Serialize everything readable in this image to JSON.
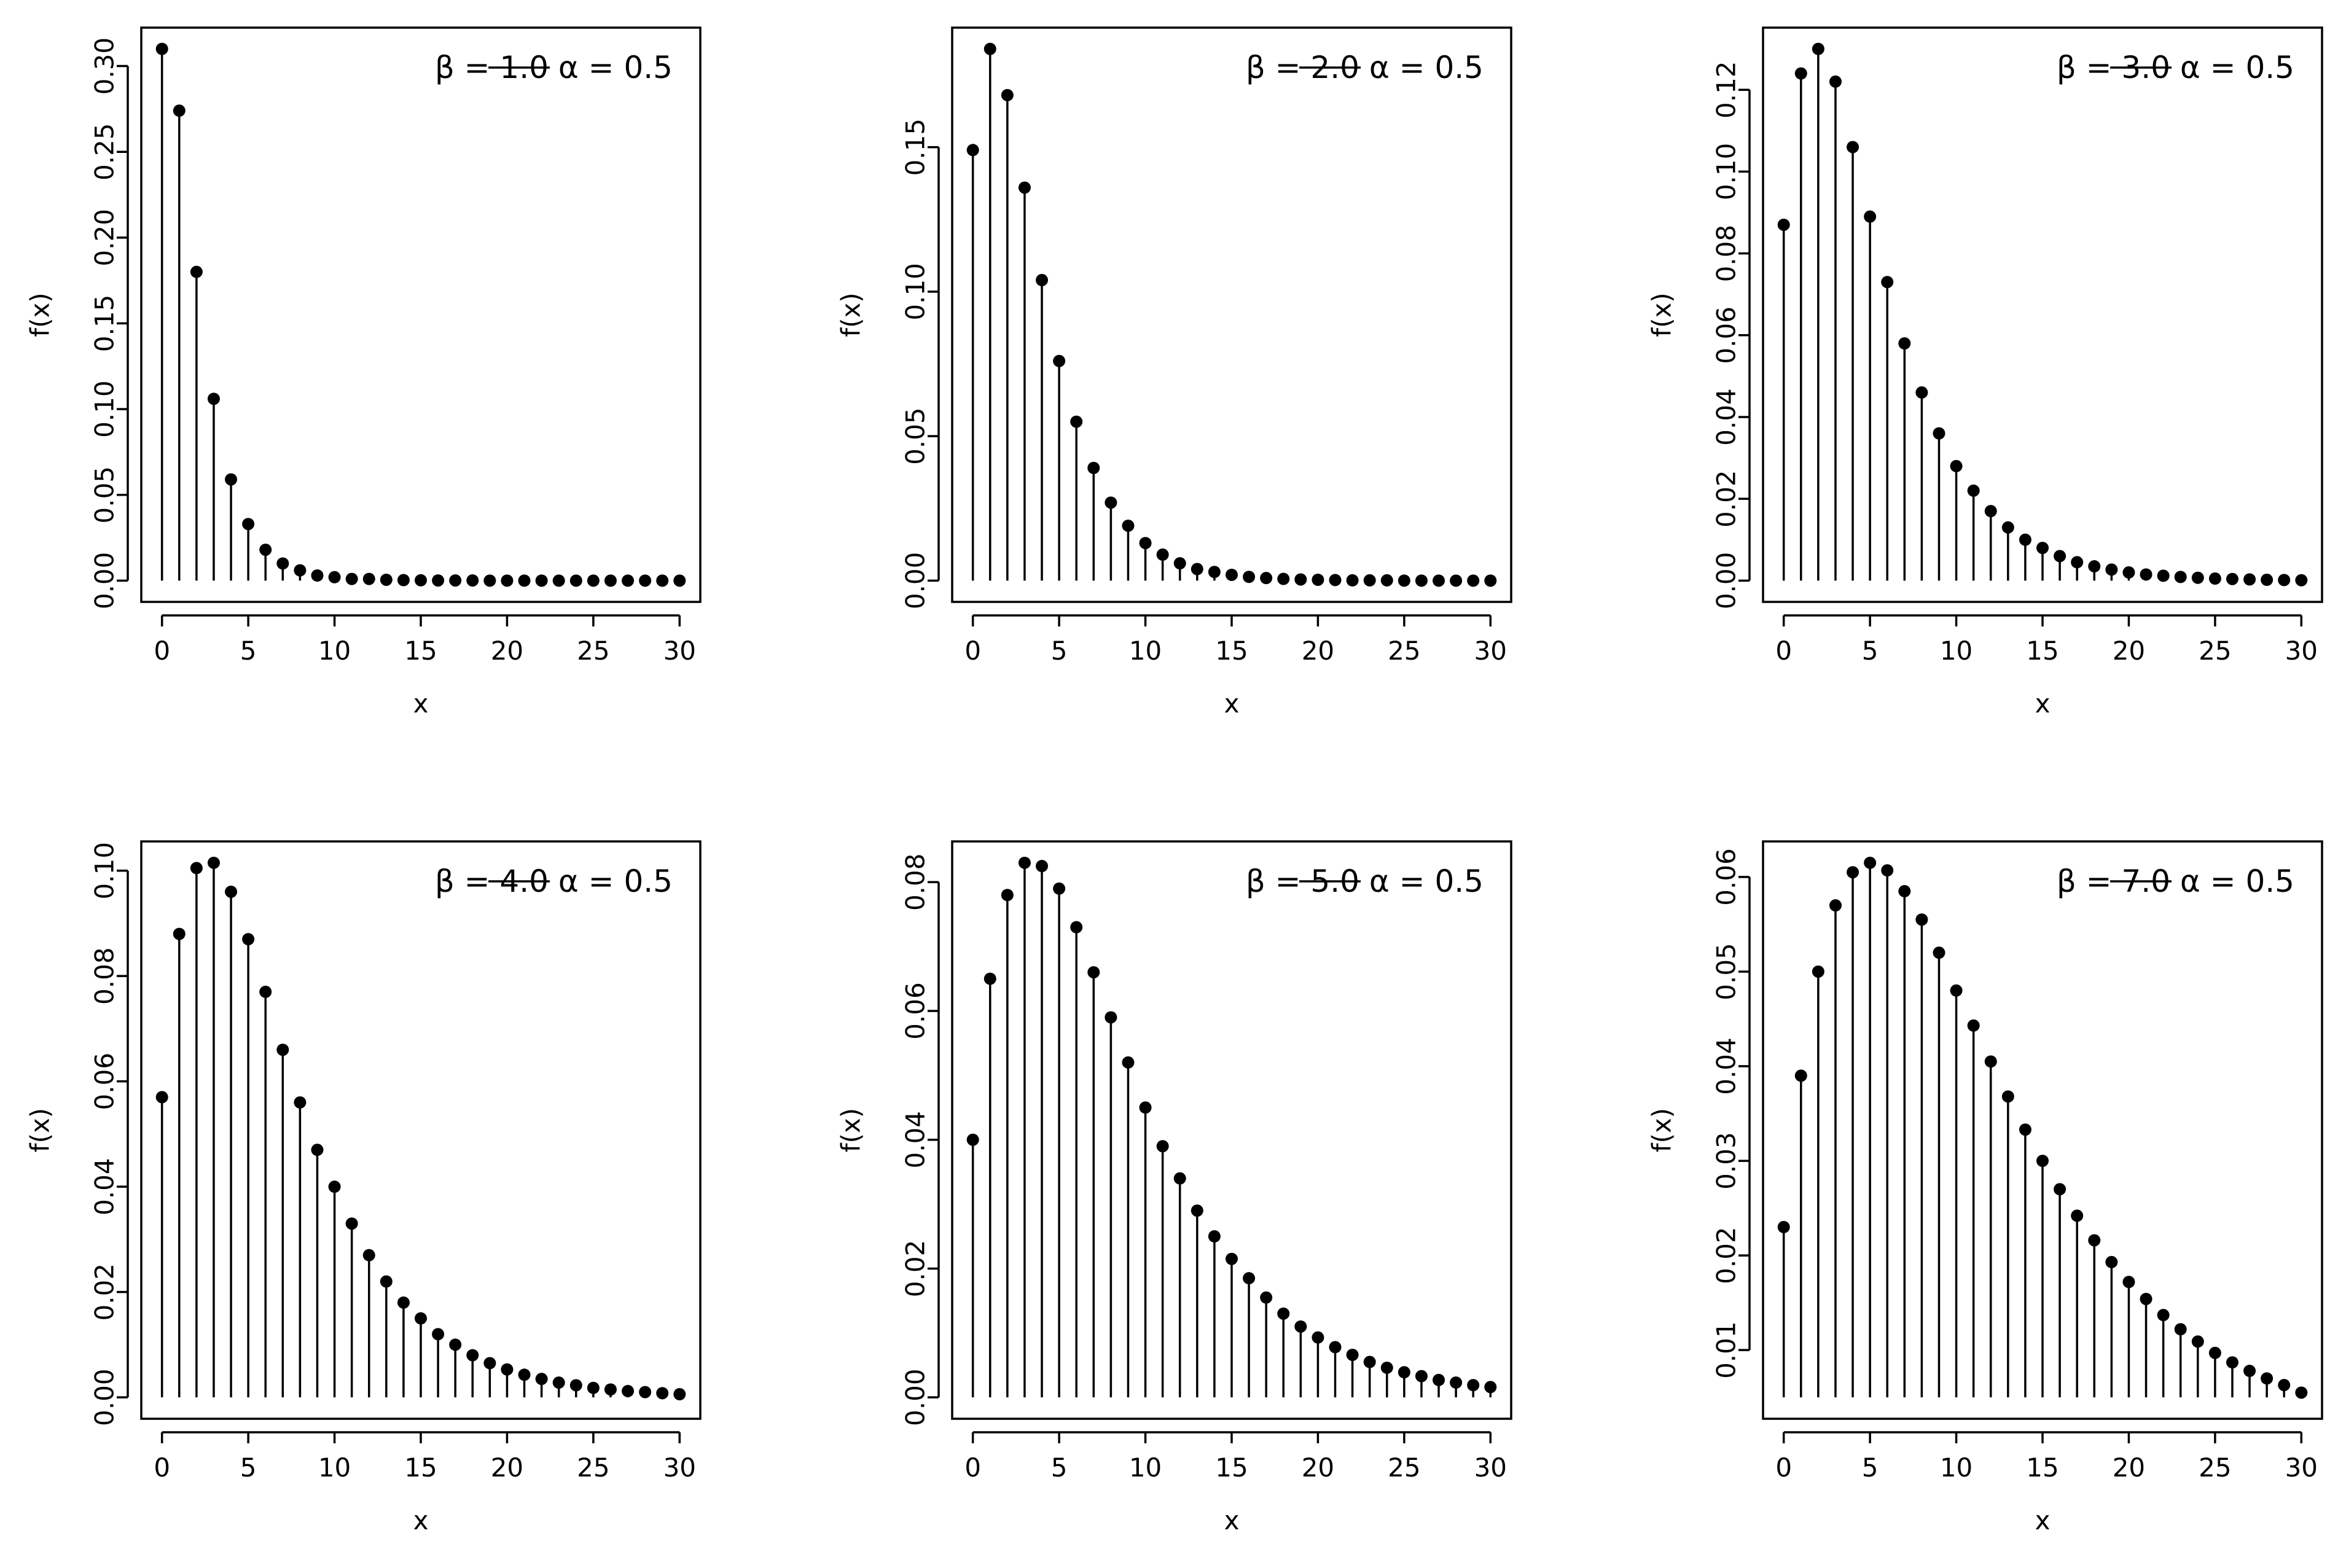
{
  "chart_data": [
    {
      "type": "lollipop",
      "xlabel": "x",
      "ylabel": "f(x)",
      "xlim": [
        0,
        30
      ],
      "ylim": [
        0,
        0.31
      ],
      "xticks": [
        0,
        5,
        10,
        15,
        20,
        25,
        30
      ],
      "xtick_labels": [
        "0",
        "5",
        "10",
        "15",
        "20",
        "25",
        "30"
      ],
      "yticks": [
        0.0,
        0.05,
        0.1,
        0.15,
        0.2,
        0.25,
        0.3
      ],
      "ytick_labels": [
        "0.00",
        "0.05",
        "0.10",
        "0.15",
        "0.20",
        "0.25",
        "0.30"
      ],
      "legend": {
        "label": "β = 1.0 α = 0.5",
        "position": "top-right"
      },
      "x": [
        0,
        1,
        2,
        3,
        4,
        5,
        6,
        7,
        8,
        9,
        10,
        11,
        12,
        13,
        14,
        15,
        16,
        17,
        18,
        19,
        20,
        21,
        22,
        23,
        24,
        25,
        26,
        27,
        28,
        29,
        30
      ],
      "values": [
        0.31,
        0.274,
        0.18,
        0.106,
        0.059,
        0.033,
        0.018,
        0.01,
        0.006,
        0.003,
        0.002,
        0.001,
        0.001,
        0.0005,
        0.0003,
        0.0002,
        0.0001,
        0.0001,
        0.0001,
        0,
        0,
        0,
        0,
        0,
        0,
        0,
        0,
        0,
        0,
        0,
        0
      ]
    },
    {
      "type": "lollipop",
      "xlabel": "x",
      "ylabel": "f(x)",
      "xlim": [
        0,
        30
      ],
      "ylim": [
        0,
        0.184
      ],
      "xticks": [
        0,
        5,
        10,
        15,
        20,
        25,
        30
      ],
      "xtick_labels": [
        "0",
        "5",
        "10",
        "15",
        "20",
        "25",
        "30"
      ],
      "yticks": [
        0.0,
        0.05,
        0.1,
        0.15
      ],
      "ytick_labels": [
        "0.00",
        "0.05",
        "0.10",
        "0.15"
      ],
      "legend": {
        "label": "β = 2.0 α = 0.5",
        "position": "top-right"
      },
      "x": [
        0,
        1,
        2,
        3,
        4,
        5,
        6,
        7,
        8,
        9,
        10,
        11,
        12,
        13,
        14,
        15,
        16,
        17,
        18,
        19,
        20,
        21,
        22,
        23,
        24,
        25,
        26,
        27,
        28,
        29,
        30
      ],
      "values": [
        0.149,
        0.184,
        0.168,
        0.136,
        0.104,
        0.076,
        0.055,
        0.039,
        0.027,
        0.019,
        0.013,
        0.009,
        0.006,
        0.004,
        0.003,
        0.002,
        0.0013,
        0.0009,
        0.0006,
        0.0004,
        0.0003,
        0.0002,
        0.0001,
        0.0001,
        0.0001,
        0,
        0,
        0,
        0,
        0,
        0
      ]
    },
    {
      "type": "lollipop",
      "xlabel": "x",
      "ylabel": "f(x)",
      "xlim": [
        0,
        30
      ],
      "ylim": [
        0,
        0.13
      ],
      "xticks": [
        0,
        5,
        10,
        15,
        20,
        25,
        30
      ],
      "xtick_labels": [
        "0",
        "5",
        "10",
        "15",
        "20",
        "25",
        "30"
      ],
      "yticks": [
        0.0,
        0.02,
        0.04,
        0.06,
        0.08,
        0.1,
        0.12
      ],
      "ytick_labels": [
        "0.00",
        "0.02",
        "0.04",
        "0.06",
        "0.08",
        "0.10",
        "0.12"
      ],
      "legend": {
        "label": "β = 3.0 α = 0.5",
        "position": "top-right"
      },
      "x": [
        0,
        1,
        2,
        3,
        4,
        5,
        6,
        7,
        8,
        9,
        10,
        11,
        12,
        13,
        14,
        15,
        16,
        17,
        18,
        19,
        20,
        21,
        22,
        23,
        24,
        25,
        26,
        27,
        28,
        29,
        30
      ],
      "values": [
        0.087,
        0.124,
        0.13,
        0.122,
        0.106,
        0.089,
        0.073,
        0.058,
        0.046,
        0.036,
        0.028,
        0.022,
        0.017,
        0.013,
        0.01,
        0.008,
        0.006,
        0.0045,
        0.0035,
        0.0027,
        0.002,
        0.0015,
        0.0012,
        0.0009,
        0.0007,
        0.0005,
        0.0004,
        0.0003,
        0.0002,
        0.00015,
        0.0001
      ]
    },
    {
      "type": "lollipop",
      "xlabel": "x",
      "ylabel": "f(x)",
      "xlim": [
        0,
        30
      ],
      "ylim": [
        0,
        0.1015
      ],
      "xticks": [
        0,
        5,
        10,
        15,
        20,
        25,
        30
      ],
      "xtick_labels": [
        "0",
        "5",
        "10",
        "15",
        "20",
        "25",
        "30"
      ],
      "yticks": [
        0.0,
        0.02,
        0.04,
        0.06,
        0.08,
        0.1
      ],
      "ytick_labels": [
        "0.00",
        "0.02",
        "0.04",
        "0.06",
        "0.08",
        "0.10"
      ],
      "legend": {
        "label": "β = 4.0 α = 0.5",
        "position": "top-right"
      },
      "x": [
        0,
        1,
        2,
        3,
        4,
        5,
        6,
        7,
        8,
        9,
        10,
        11,
        12,
        13,
        14,
        15,
        16,
        17,
        18,
        19,
        20,
        21,
        22,
        23,
        24,
        25,
        26,
        27,
        28,
        29,
        30
      ],
      "values": [
        0.057,
        0.088,
        0.1005,
        0.1015,
        0.096,
        0.087,
        0.077,
        0.066,
        0.056,
        0.047,
        0.04,
        0.033,
        0.027,
        0.022,
        0.018,
        0.015,
        0.012,
        0.01,
        0.008,
        0.0065,
        0.0053,
        0.0043,
        0.0035,
        0.0028,
        0.0023,
        0.0018,
        0.0015,
        0.0012,
        0.001,
        0.0008,
        0.0006
      ]
    },
    {
      "type": "lollipop",
      "xlabel": "x",
      "ylabel": "f(x)",
      "xlim": [
        0,
        30
      ],
      "ylim": [
        0,
        0.083
      ],
      "xticks": [
        0,
        5,
        10,
        15,
        20,
        25,
        30
      ],
      "xtick_labels": [
        "0",
        "5",
        "10",
        "15",
        "20",
        "25",
        "30"
      ],
      "yticks": [
        0.0,
        0.02,
        0.04,
        0.06,
        0.08
      ],
      "ytick_labels": [
        "0.00",
        "0.02",
        "0.04",
        "0.06",
        "0.08"
      ],
      "legend": {
        "label": "β = 5.0 α = 0.5",
        "position": "top-right"
      },
      "x": [
        0,
        1,
        2,
        3,
        4,
        5,
        6,
        7,
        8,
        9,
        10,
        11,
        12,
        13,
        14,
        15,
        16,
        17,
        18,
        19,
        20,
        21,
        22,
        23,
        24,
        25,
        26,
        27,
        28,
        29,
        30
      ],
      "values": [
        0.04,
        0.065,
        0.078,
        0.083,
        0.0825,
        0.079,
        0.073,
        0.066,
        0.059,
        0.052,
        0.045,
        0.039,
        0.034,
        0.029,
        0.025,
        0.0215,
        0.0185,
        0.0155,
        0.013,
        0.011,
        0.0093,
        0.0078,
        0.0066,
        0.0055,
        0.0046,
        0.0039,
        0.0033,
        0.0027,
        0.0023,
        0.0019,
        0.0016
      ]
    },
    {
      "type": "lollipop",
      "xlabel": "x",
      "ylabel": "f(x)",
      "xlim": [
        0,
        30
      ],
      "ylim": [
        0.005,
        0.0615
      ],
      "xticks": [
        0,
        5,
        10,
        15,
        20,
        25,
        30
      ],
      "xtick_labels": [
        "0",
        "5",
        "10",
        "15",
        "20",
        "25",
        "30"
      ],
      "yticks": [
        0.01,
        0.02,
        0.03,
        0.04,
        0.05,
        0.06
      ],
      "ytick_labels": [
        "0.01",
        "0.02",
        "0.03",
        "0.04",
        "0.05",
        "0.06"
      ],
      "legend": {
        "label": "β = 7.0 α = 0.5",
        "position": "top-right"
      },
      "x": [
        0,
        1,
        2,
        3,
        4,
        5,
        6,
        7,
        8,
        9,
        10,
        11,
        12,
        13,
        14,
        15,
        16,
        17,
        18,
        19,
        20,
        21,
        22,
        23,
        24,
        25,
        26,
        27,
        28,
        29,
        30
      ],
      "values": [
        0.023,
        0.039,
        0.05,
        0.057,
        0.0605,
        0.0615,
        0.0607,
        0.0585,
        0.0555,
        0.052,
        0.048,
        0.0443,
        0.0405,
        0.0368,
        0.0333,
        0.03,
        0.027,
        0.0242,
        0.0216,
        0.0193,
        0.0172,
        0.0154,
        0.0137,
        0.0122,
        0.0109,
        0.0097,
        0.0087,
        0.0078,
        0.007,
        0.0063,
        0.0055
      ]
    }
  ]
}
